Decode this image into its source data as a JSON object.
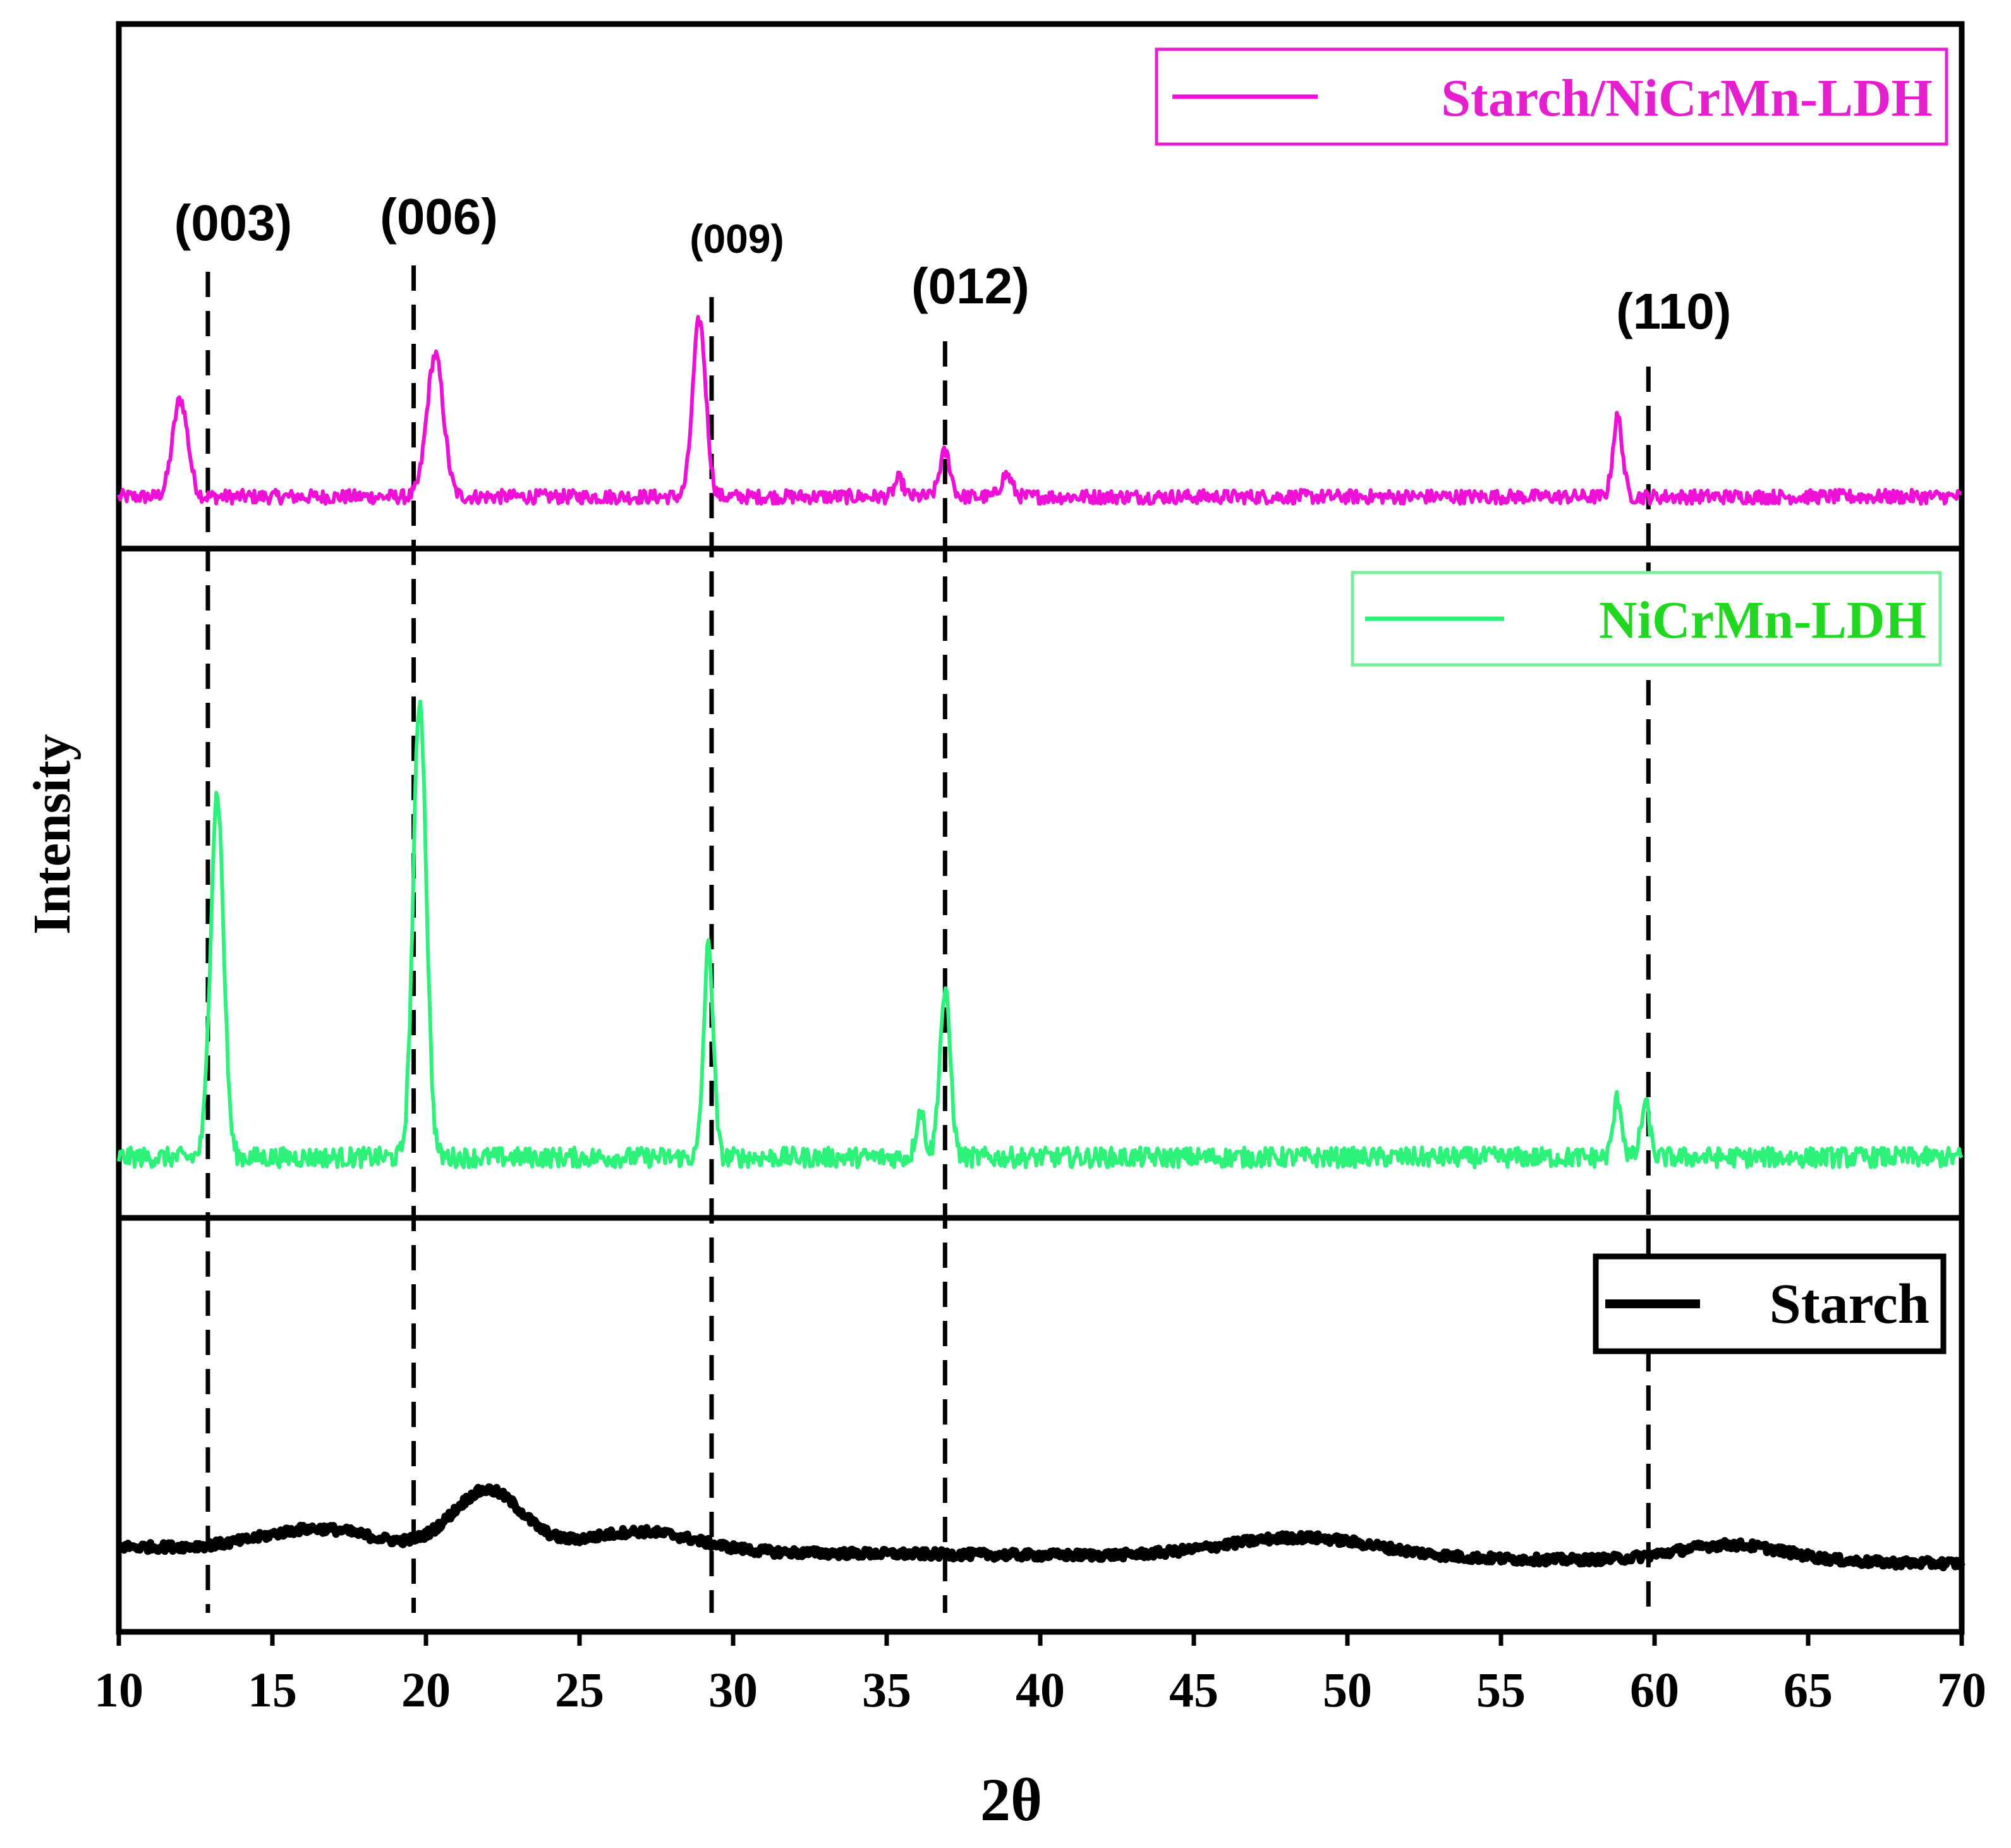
{
  "chart_data": {
    "type": "line",
    "title": "",
    "xlabel": "2θ",
    "ylabel": "Intensity",
    "xlim": [
      10,
      70
    ],
    "x_ticks": [
      10,
      15,
      20,
      25,
      30,
      35,
      40,
      45,
      50,
      55,
      60,
      65,
      70
    ],
    "x_tick_labels": [
      "10",
      "15",
      "20",
      "25",
      "30",
      "35",
      "40",
      "45",
      "50",
      "55",
      "60",
      "65",
      "70"
    ],
    "panels": [
      {
        "name": "Starch/NiCrMn-LDH",
        "legend": "Starch/NiCrMn-LDH",
        "color": "#ee10d6",
        "legend_border_color": "#e61ecf",
        "legend_text_color": "#e61ecf",
        "ylim": [
          0,
          100
        ],
        "baseline": 6,
        "noise": 1.6,
        "peaks": [
          {
            "x": 12.0,
            "height": 22,
            "width": 0.35
          },
          {
            "x": 20.3,
            "height": 32,
            "width": 0.38
          },
          {
            "x": 28.9,
            "height": 40,
            "width": 0.3
          },
          {
            "x": 35.4,
            "height": 4,
            "width": 0.2
          },
          {
            "x": 36.9,
            "height": 10,
            "width": 0.25
          },
          {
            "x": 38.9,
            "height": 5,
            "width": 0.25
          },
          {
            "x": 58.8,
            "height": 18,
            "width": 0.22
          }
        ]
      },
      {
        "name": "NiCrMn-LDH",
        "legend": "NiCrMn-LDH",
        "color": "#2df27a",
        "legend_border_color": "#7aeb9c",
        "legend_text_color": "#1fd81f",
        "ylim": [
          0,
          100
        ],
        "baseline": 6,
        "noise": 1.7,
        "peaks": [
          {
            "x": 13.2,
            "height": 62,
            "width": 0.3
          },
          {
            "x": 19.8,
            "height": 78,
            "width": 0.3
          },
          {
            "x": 29.2,
            "height": 36,
            "width": 0.22
          },
          {
            "x": 36.1,
            "height": 8,
            "width": 0.2
          },
          {
            "x": 36.9,
            "height": 28,
            "width": 0.25
          },
          {
            "x": 58.8,
            "height": 10,
            "width": 0.2
          },
          {
            "x": 59.7,
            "height": 9,
            "width": 0.2
          }
        ]
      },
      {
        "name": "Starch",
        "legend": "Starch",
        "color": "#000000",
        "legend_border_color": "#000000",
        "legend_text_color": "#000000",
        "ylim": [
          0,
          100
        ],
        "baseline": 18,
        "noise": 1.3,
        "humps": [
          {
            "x": 16.5,
            "height": 6,
            "width": 2.5
          },
          {
            "x": 22.0,
            "height": 18,
            "width": 1.6
          },
          {
            "x": 27.0,
            "height": 6,
            "width": 2.5
          },
          {
            "x": 48.5,
            "height": 6,
            "width": 3.5
          },
          {
            "x": 62.5,
            "height": 5,
            "width": 2.5
          }
        ],
        "slope_end": -5
      }
    ],
    "reference_lines": [
      {
        "label": "(003)",
        "x": 12.9
      },
      {
        "label": "(006)",
        "x": 19.6
      },
      {
        "label": "(009)",
        "x": 29.3
      },
      {
        "label": "(012)",
        "x": 36.9
      },
      {
        "label": "(110)",
        "x": 59.8
      }
    ],
    "legend_position": "top-right"
  }
}
